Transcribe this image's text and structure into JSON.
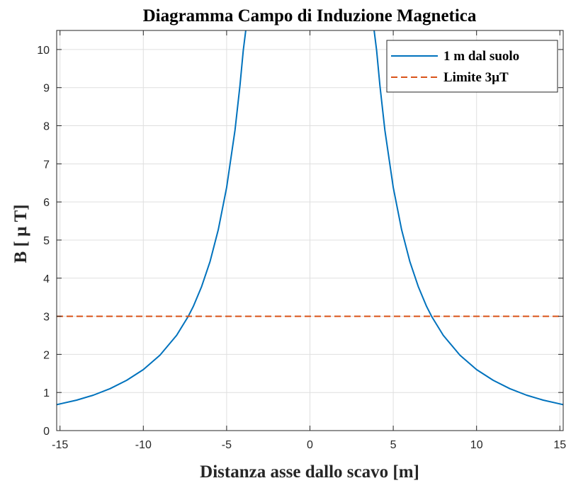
{
  "chart_data": {
    "type": "line",
    "title": "Diagramma Campo di Induzione Magnetica",
    "xlabel": "Distanza asse dallo scavo [m]",
    "ylabel": "B [ μ T]",
    "xlim": [
      -15.2,
      15.2
    ],
    "ylim": [
      0,
      10.5
    ],
    "xticks": [
      -15,
      -10,
      -5,
      0,
      5,
      10,
      15
    ],
    "xtick_labels": [
      "-15",
      "-10",
      "-5",
      "0",
      "5",
      "10",
      "15"
    ],
    "yticks": [
      0,
      1,
      2,
      3,
      4,
      5,
      6,
      7,
      8,
      9,
      10
    ],
    "ytick_labels": [
      "0",
      "1",
      "2",
      "3",
      "4",
      "5",
      "6",
      "7",
      "8",
      "9",
      "10"
    ],
    "grid": true,
    "legend_position": "top-right",
    "series": [
      {
        "name": "1 m dal suolo",
        "color": "#0072BD",
        "line_style": "solid",
        "x": [
          -15.2,
          -15,
          -14,
          -13,
          -12,
          -11,
          -10,
          -9,
          -8,
          -7.3,
          -7,
          -6.5,
          -6,
          -5.5,
          -5,
          -4.5,
          -4.2,
          -4,
          -3.85,
          -3.75,
          3.75,
          3.85,
          4,
          4.2,
          4.5,
          5,
          5.5,
          6,
          6.5,
          7,
          7.3,
          8,
          9,
          10,
          11,
          12,
          13,
          14,
          15,
          15.2
        ],
        "y": [
          0.68,
          0.7,
          0.8,
          0.93,
          1.1,
          1.32,
          1.6,
          1.98,
          2.5,
          3.0,
          3.26,
          3.78,
          4.43,
          5.27,
          6.38,
          7.88,
          9.05,
          9.98,
          10.5,
          11.1,
          11.1,
          10.5,
          9.98,
          9.05,
          7.88,
          6.38,
          5.27,
          4.43,
          3.78,
          3.26,
          3.0,
          2.5,
          1.98,
          1.6,
          1.32,
          1.1,
          0.93,
          0.8,
          0.7,
          0.68
        ]
      },
      {
        "name": "Limite 3µT",
        "color": "#D95319",
        "line_style": "dashed",
        "x": [
          -15.2,
          15.2
        ],
        "y": [
          3,
          3
        ]
      }
    ]
  }
}
